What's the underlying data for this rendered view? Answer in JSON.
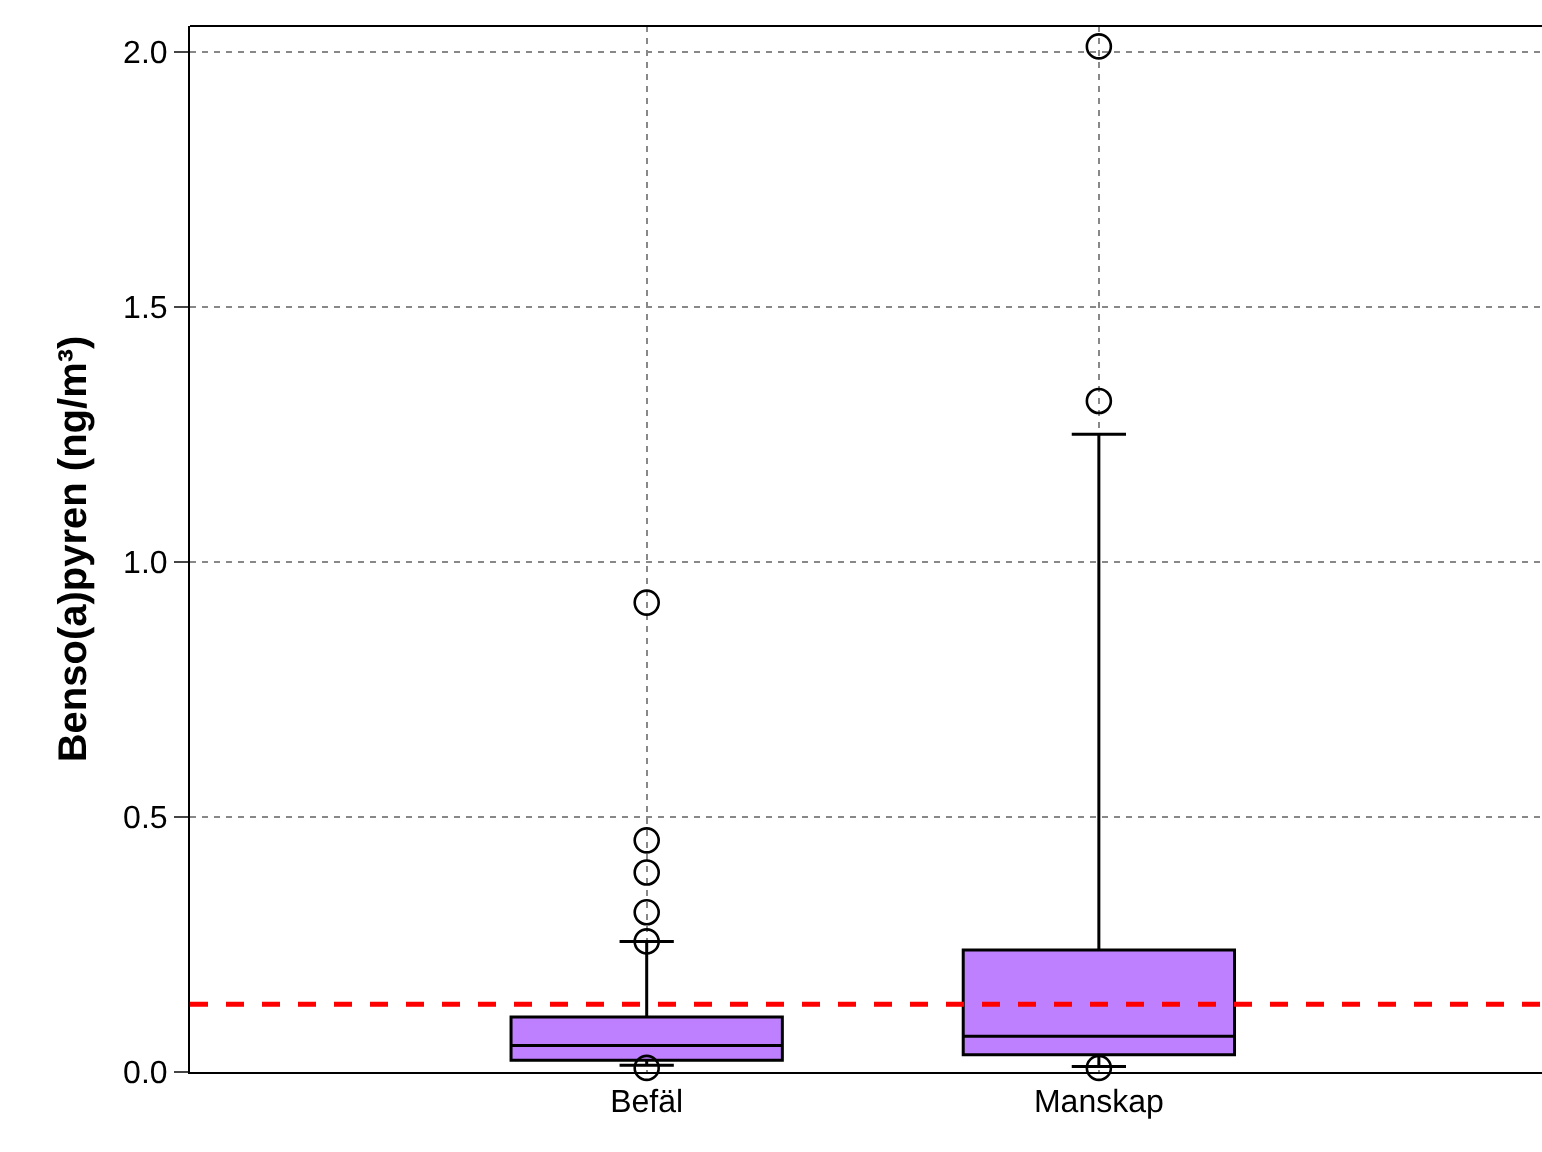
{
  "chart_data": {
    "type": "box",
    "ylabel": "Benso(a)pyren (ng/m³)",
    "categories": [
      "Befäl",
      "Manskap"
    ],
    "boxes": [
      {
        "low": 0.013,
        "q1": 0.023,
        "median": 0.052,
        "q3": 0.108,
        "high": 0.256,
        "outliers": [
          0.92,
          0.454,
          0.391,
          0.313,
          0.256,
          0.008
        ]
      },
      {
        "low": 0.011,
        "q1": 0.034,
        "median": 0.07,
        "q3": 0.239,
        "high": 1.25,
        "outliers": [
          2.01,
          1.315,
          0.008
        ]
      }
    ],
    "color": "#bf80ff",
    "ylim": [
      0,
      2.05
    ],
    "yticks": [
      {
        "value": 0,
        "label": "0.0"
      },
      {
        "value": 0.5,
        "label": "0.5"
      },
      {
        "value": 1,
        "label": "1.0"
      },
      {
        "value": 1.5,
        "label": "1.5"
      },
      {
        "value": 2,
        "label": "2.0"
      }
    ],
    "grid": true,
    "marker": "circle",
    "ref_lines": [
      {
        "axis": "y",
        "value": 0.133,
        "color": "#ff0000",
        "line_style": "dashed"
      }
    ]
  }
}
